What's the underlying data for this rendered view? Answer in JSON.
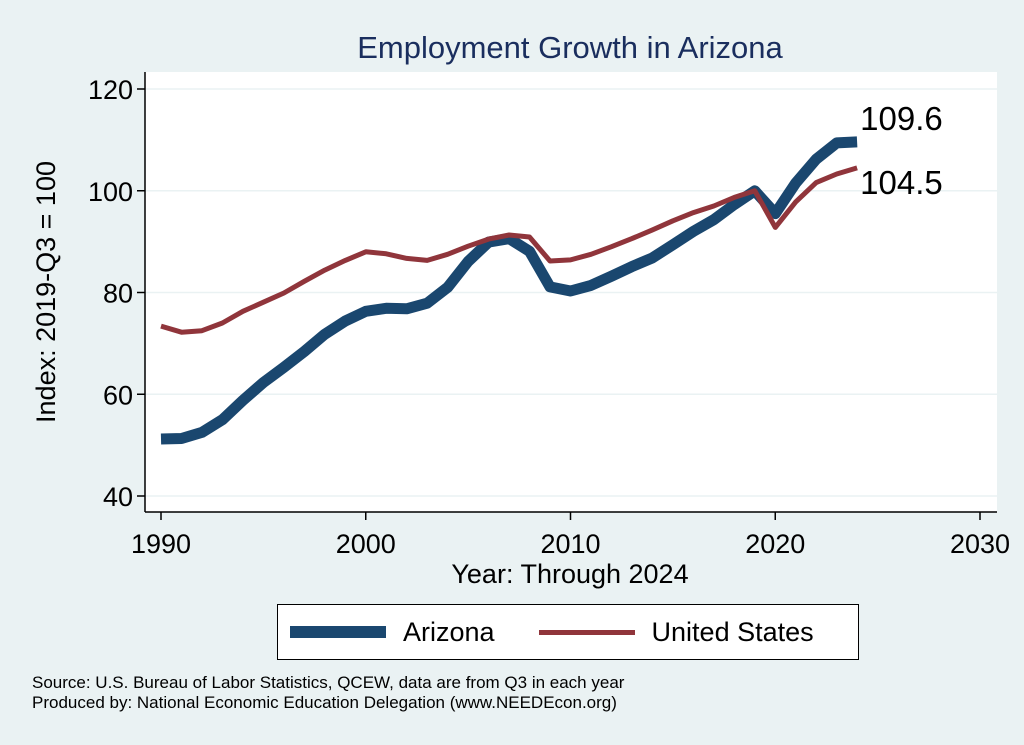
{
  "chart_data": {
    "type": "line",
    "title": "Employment Growth in Arizona",
    "xlabel": "Year: Through 2024",
    "ylabel": "Index: 2019-Q3 = 100",
    "xlim": [
      1990,
      2030
    ],
    "ylim": [
      40,
      120
    ],
    "xticks": [
      1990,
      2000,
      2010,
      2020,
      2030
    ],
    "yticks": [
      40,
      60,
      80,
      100,
      120
    ],
    "x": [
      1990,
      1991,
      1992,
      1993,
      1994,
      1995,
      1996,
      1997,
      1998,
      1999,
      2000,
      2001,
      2002,
      2003,
      2004,
      2005,
      2006,
      2007,
      2008,
      2009,
      2010,
      2011,
      2012,
      2013,
      2014,
      2015,
      2016,
      2017,
      2018,
      2019,
      2020,
      2021,
      2022,
      2023,
      2024
    ],
    "series": [
      {
        "name": "Arizona",
        "color": "#1a476f",
        "values": [
          51.2,
          51.3,
          52.5,
          55.0,
          58.8,
          62.3,
          65.3,
          68.4,
          71.8,
          74.4,
          76.3,
          76.9,
          76.8,
          77.9,
          81.0,
          86.1,
          89.9,
          90.6,
          88.1,
          81.1,
          80.3,
          81.4,
          83.2,
          85.1,
          86.8,
          89.4,
          92.0,
          94.3,
          97.3,
          100.0,
          95.5,
          101.5,
          106.2,
          109.4,
          109.6
        ],
        "end_label": "109.6"
      },
      {
        "name": "United States",
        "color": "#90353b",
        "values": [
          73.4,
          72.2,
          72.5,
          74.0,
          76.3,
          78.1,
          79.9,
          82.2,
          84.4,
          86.3,
          88.0,
          87.6,
          86.7,
          86.3,
          87.5,
          89.1,
          90.5,
          91.3,
          90.9,
          86.2,
          86.4,
          87.5,
          89.0,
          90.6,
          92.3,
          94.1,
          95.7,
          97.0,
          98.7,
          100.0,
          92.8,
          97.8,
          101.6,
          103.3,
          104.5
        ],
        "end_label": "104.5"
      }
    ],
    "legend_position": "bottom"
  },
  "source_text": {
    "line1": "Source: U.S. Bureau of Labor Statistics, QCEW, data are from Q3 in each year",
    "line2": "Produced by: National Economic Education Delegation (www.NEEDEcon.org)"
  }
}
